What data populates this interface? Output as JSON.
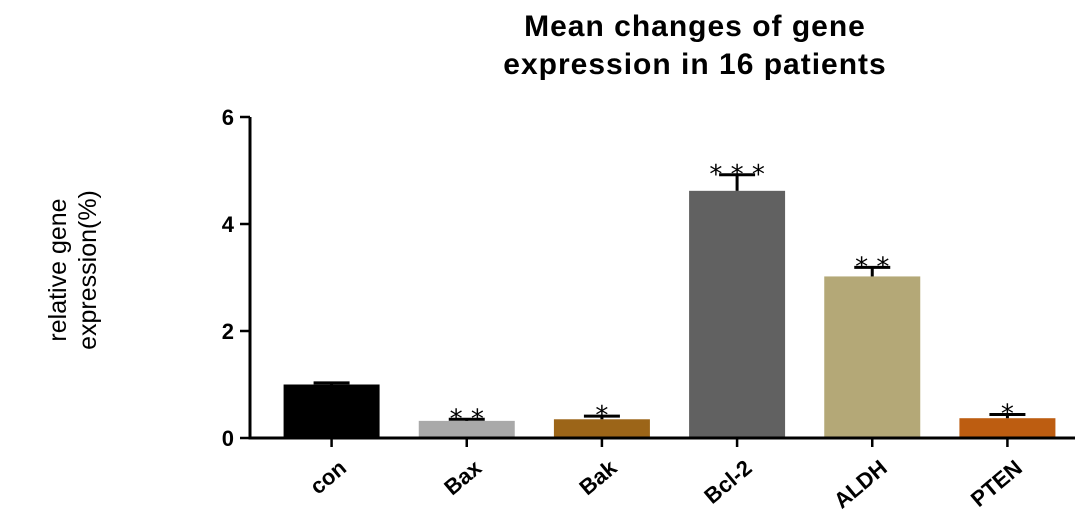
{
  "chart_data": {
    "type": "bar",
    "title": [
      "Mean changes of gene",
      "expression in 16 patients"
    ],
    "ylabel": [
      "relative gene",
      "expression(%)"
    ],
    "xlabel": "",
    "ylim": [
      0,
      6
    ],
    "yticks": [
      0,
      2,
      4,
      6
    ],
    "categories": [
      "con",
      "Bax",
      "Bak",
      "Bcl-2",
      "ALDH",
      "PTEN"
    ],
    "values": [
      1.0,
      0.32,
      0.35,
      4.62,
      3.02,
      0.37
    ],
    "errors": [
      0.03,
      0.03,
      0.06,
      0.3,
      0.17,
      0.07
    ],
    "significance": [
      "",
      "**",
      "*",
      "***",
      "**",
      "*"
    ],
    "colors": [
      "#000000",
      "#a9a9a9",
      "#9c6518",
      "#616161",
      "#b4a877",
      "#bd5d11"
    ],
    "grid": false
  }
}
